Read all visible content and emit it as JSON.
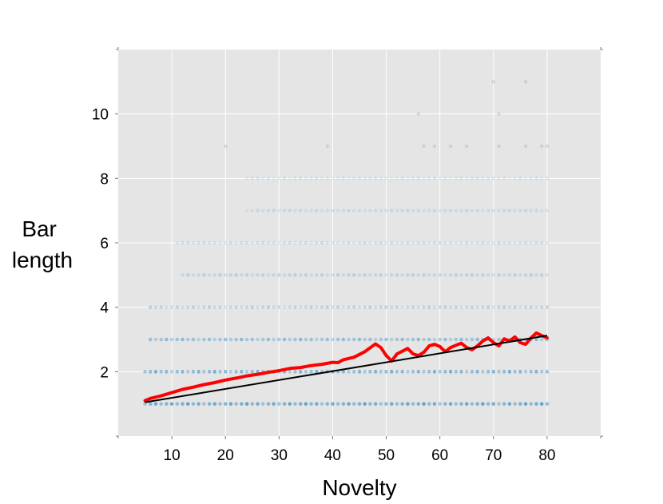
{
  "chart_data": {
    "type": "scatter",
    "title": "",
    "xlabel": "Novelty",
    "ylabel_lines": [
      "Bar",
      "length"
    ],
    "xlim": [
      0,
      90
    ],
    "ylim": [
      0,
      12
    ],
    "xticks": [
      10,
      20,
      30,
      40,
      50,
      60,
      70,
      80
    ],
    "yticks": [
      2,
      4,
      6,
      8,
      10
    ],
    "grid": true,
    "legend": "none",
    "colors": {
      "panel": "#e5e5e5",
      "grid": "#ffffff",
      "points": "#3a8fc4",
      "smooth_line": "#ff0000",
      "fit_line": "#000000"
    },
    "point_rows": [
      {
        "y": 1,
        "x_from": 5,
        "x_to": 80,
        "opacity": 0.75
      },
      {
        "y": 2,
        "x_from": 5,
        "x_to": 80,
        "opacity": 0.65
      },
      {
        "y": 3,
        "x_from": 6,
        "x_to": 80,
        "opacity": 0.5
      },
      {
        "y": 4,
        "x_from": 6,
        "x_to": 80,
        "opacity": 0.3
      },
      {
        "y": 5,
        "x_from": 12,
        "x_to": 80,
        "opacity": 0.25
      },
      {
        "y": 6,
        "x_from": 11,
        "x_to": 80,
        "opacity": 0.2
      },
      {
        "y": 7,
        "x_from": 24,
        "x_to": 80,
        "opacity": 0.18
      },
      {
        "y": 8,
        "x_from": 24,
        "x_to": 80,
        "opacity": 0.15
      }
    ],
    "sparse_points": [
      {
        "x": 20,
        "y": 9
      },
      {
        "x": 39,
        "y": 9
      },
      {
        "x": 57,
        "y": 9
      },
      {
        "x": 59,
        "y": 9
      },
      {
        "x": 62,
        "y": 9
      },
      {
        "x": 65,
        "y": 9
      },
      {
        "x": 71,
        "y": 9
      },
      {
        "x": 76,
        "y": 9
      },
      {
        "x": 79,
        "y": 9
      },
      {
        "x": 80,
        "y": 9
      },
      {
        "x": 56,
        "y": 10
      },
      {
        "x": 71,
        "y": 10
      },
      {
        "x": 70,
        "y": 11
      },
      {
        "x": 76,
        "y": 11
      }
    ],
    "smooth_line": [
      [
        5,
        1.1
      ],
      [
        6,
        1.17
      ],
      [
        8,
        1.25
      ],
      [
        10,
        1.35
      ],
      [
        12,
        1.45
      ],
      [
        14,
        1.52
      ],
      [
        16,
        1.6
      ],
      [
        18,
        1.66
      ],
      [
        20,
        1.74
      ],
      [
        22,
        1.8
      ],
      [
        24,
        1.87
      ],
      [
        26,
        1.92
      ],
      [
        28,
        1.98
      ],
      [
        30,
        2.03
      ],
      [
        32,
        2.1
      ],
      [
        34,
        2.13
      ],
      [
        36,
        2.19
      ],
      [
        38,
        2.23
      ],
      [
        40,
        2.29
      ],
      [
        41,
        2.28
      ],
      [
        42,
        2.37
      ],
      [
        44,
        2.45
      ],
      [
        46,
        2.62
      ],
      [
        48,
        2.86
      ],
      [
        49,
        2.75
      ],
      [
        50,
        2.5
      ],
      [
        51,
        2.33
      ],
      [
        52,
        2.55
      ],
      [
        54,
        2.72
      ],
      [
        55,
        2.55
      ],
      [
        56,
        2.5
      ],
      [
        57,
        2.6
      ],
      [
        58,
        2.8
      ],
      [
        59,
        2.85
      ],
      [
        60,
        2.78
      ],
      [
        61,
        2.62
      ],
      [
        62,
        2.75
      ],
      [
        63,
        2.82
      ],
      [
        64,
        2.88
      ],
      [
        65,
        2.75
      ],
      [
        66,
        2.68
      ],
      [
        67,
        2.8
      ],
      [
        68,
        2.95
      ],
      [
        69,
        3.05
      ],
      [
        70,
        2.9
      ],
      [
        71,
        2.8
      ],
      [
        72,
        3.02
      ],
      [
        73,
        2.95
      ],
      [
        74,
        3.08
      ],
      [
        75,
        2.9
      ],
      [
        76,
        2.85
      ],
      [
        77,
        3.05
      ],
      [
        78,
        3.2
      ],
      [
        79,
        3.12
      ],
      [
        80,
        3.05
      ]
    ],
    "fit_line": [
      [
        5,
        1.05
      ],
      [
        80,
        3.12
      ]
    ]
  }
}
